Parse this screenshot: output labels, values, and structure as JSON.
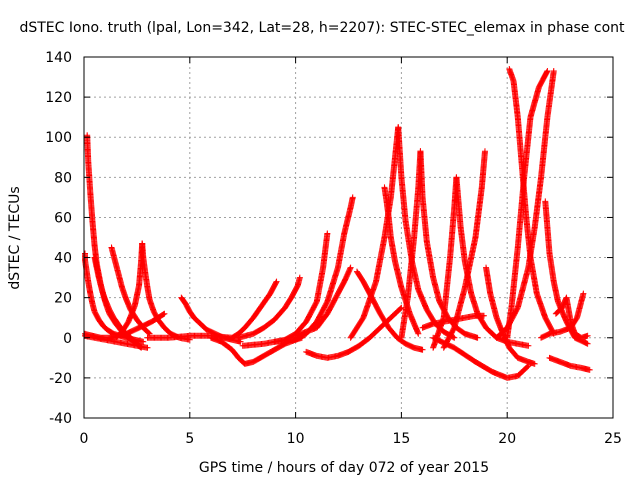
{
  "chart_data": {
    "type": "scatter",
    "title": "dSTEC Iono. truth (lpal, Lon=342, Lat=28, h=2207): STEC-STEC_elemax in phase cont",
    "xlabel": "GPS time / hours of day 072 of year 2015",
    "ylabel": "dSTEC  / TECUs",
    "xlim": [
      0,
      25
    ],
    "ylim": [
      -40,
      140
    ],
    "x_ticks": [
      "0",
      "5",
      "10",
      "15",
      "20",
      "25"
    ],
    "y_ticks": [
      "-40",
      "-20",
      "0",
      "20",
      "40",
      "60",
      "80",
      "100",
      "120",
      "140"
    ],
    "grid": true,
    "marker": "+",
    "colors": {
      "series": "#ff0000",
      "grid": "#a0a0a0",
      "axes": "#000000"
    },
    "series": [
      {
        "x": [
          0.0,
          0.1,
          0.2,
          0.3,
          0.4,
          0.5,
          0.7,
          0.9,
          1.1,
          1.4,
          1.7,
          2.0,
          2.4,
          2.8
        ],
        "y": [
          42,
          35,
          28,
          22,
          17,
          13,
          9,
          6,
          4,
          2,
          1,
          0,
          -1,
          -2
        ]
      },
      {
        "x": [
          0.15,
          0.2,
          0.3,
          0.4,
          0.5,
          0.6,
          0.8,
          1.0,
          1.2,
          1.5,
          1.8,
          2.1,
          2.5,
          2.7
        ],
        "y": [
          101,
          88,
          72,
          58,
          46,
          37,
          26,
          18,
          12,
          7,
          3,
          0,
          -3,
          -5
        ]
      },
      {
        "x": [
          0.5,
          0.6,
          0.7,
          0.8,
          0.9,
          1.0,
          1.2,
          1.4,
          1.6,
          1.8,
          2.0,
          2.3,
          2.6
        ],
        "y": [
          40,
          35,
          30,
          26,
          22,
          19,
          14,
          10,
          7,
          4,
          2,
          -1,
          -4
        ]
      },
      {
        "x": [
          0.0,
          0.5,
          1.0,
          1.5,
          2.0,
          2.5,
          3.0
        ],
        "y": [
          1,
          0,
          -1,
          -2,
          -3,
          -4,
          -5
        ]
      },
      {
        "x": [
          0.0,
          0.4,
          0.8,
          1.2,
          1.6,
          2.0,
          2.4,
          2.8,
          3.2,
          3.5,
          3.8
        ],
        "y": [
          2,
          1,
          0,
          0,
          1,
          2,
          4,
          6,
          8,
          10,
          12
        ]
      },
      {
        "x": [
          1.3,
          1.4,
          1.5,
          1.6,
          1.7,
          1.8,
          2.0,
          2.2,
          2.5,
          2.8,
          3.1
        ],
        "y": [
          45,
          41,
          37,
          33,
          29,
          25,
          19,
          14,
          9,
          5,
          2
        ]
      },
      {
        "x": [
          1.5,
          1.8,
          2.1,
          2.4,
          2.6,
          2.7,
          2.75
        ],
        "y": [
          0,
          3,
          8,
          16,
          26,
          38,
          47
        ]
      },
      {
        "x": [
          2.75,
          2.8,
          2.9,
          3.0,
          3.1,
          3.3,
          3.5,
          3.8,
          4.1,
          4.5,
          5.0
        ],
        "y": [
          47,
          40,
          32,
          25,
          19,
          13,
          9,
          5,
          2,
          0,
          -1
        ]
      },
      {
        "x": [
          4.6,
          4.8,
          5.0,
          5.2,
          5.5,
          5.8,
          6.2,
          6.6,
          7.0,
          7.4
        ],
        "y": [
          20,
          17,
          13,
          10,
          7,
          4,
          2,
          0,
          -1,
          -2
        ]
      },
      {
        "x": [
          3.0,
          4.0,
          5.0,
          6.0,
          7.0,
          7.3,
          7.6,
          8.0,
          8.4,
          8.8,
          9.1
        ],
        "y": [
          0,
          0,
          1,
          1,
          0,
          2,
          5,
          10,
          16,
          22,
          28
        ]
      },
      {
        "x": [
          6.0,
          6.5,
          7.0,
          7.3,
          7.6,
          8.0,
          8.5,
          9.0,
          9.5,
          10.0,
          10.3
        ],
        "y": [
          0,
          -2,
          -6,
          -10,
          -13,
          -12,
          -9,
          -6,
          -3,
          -1,
          0
        ]
      },
      {
        "x": [
          7.3,
          8.0,
          8.5,
          9.0,
          9.5,
          9.8,
          10.1,
          10.2
        ],
        "y": [
          0,
          2,
          5,
          9,
          15,
          20,
          26,
          30
        ]
      },
      {
        "x": [
          7.5,
          8.5,
          9.5,
          10.0,
          10.5,
          11.0,
          11.3,
          11.5
        ],
        "y": [
          -4,
          -3,
          -1,
          2,
          8,
          18,
          35,
          52
        ]
      },
      {
        "x": [
          9.0,
          10.0,
          10.5,
          11.0,
          11.5,
          12.0,
          12.3,
          12.6,
          12.7
        ],
        "y": [
          -2,
          -1,
          2,
          8,
          18,
          35,
          52,
          65,
          70
        ]
      },
      {
        "x": [
          10.0,
          11.0,
          11.5,
          12.0,
          12.3,
          12.6
        ],
        "y": [
          1,
          5,
          12,
          22,
          28,
          35
        ]
      },
      {
        "x": [
          10.5,
          11.0,
          11.5,
          12.0,
          12.5,
          13.0,
          13.5,
          14.0,
          14.5,
          15.0
        ],
        "y": [
          -7,
          -9,
          -10,
          -9,
          -7,
          -4,
          0,
          5,
          10,
          15
        ]
      },
      {
        "x": [
          12.9,
          13.2,
          13.6,
          14.0,
          14.4,
          14.8,
          15.2,
          15.6,
          16.0
        ],
        "y": [
          33,
          28,
          20,
          12,
          5,
          0,
          -3,
          -5,
          -6
        ]
      },
      {
        "x": [
          12.6,
          13.2,
          13.8,
          14.2,
          14.5,
          14.7,
          14.85
        ],
        "y": [
          0,
          10,
          28,
          50,
          70,
          90,
          105
        ]
      },
      {
        "x": [
          14.85,
          15.0,
          15.2,
          15.5,
          15.8,
          16.2,
          16.6,
          17.0,
          17.5
        ],
        "y": [
          105,
          80,
          58,
          38,
          24,
          14,
          7,
          3,
          0
        ]
      },
      {
        "x": [
          14.2,
          14.3,
          14.4,
          14.5,
          14.7,
          15.0,
          15.4,
          15.8
        ],
        "y": [
          75,
          68,
          60,
          50,
          38,
          25,
          12,
          2
        ]
      },
      {
        "x": [
          15.0,
          15.3,
          15.6,
          15.8,
          15.9
        ],
        "y": [
          0,
          20,
          50,
          75,
          93
        ]
      },
      {
        "x": [
          15.9,
          16.0,
          16.2,
          16.5,
          16.8,
          17.2,
          17.6,
          18.0,
          18.6
        ],
        "y": [
          93,
          70,
          48,
          30,
          18,
          10,
          5,
          2,
          0
        ]
      },
      {
        "x": [
          16.5,
          17.0,
          17.3,
          17.5,
          17.6
        ],
        "y": [
          -5,
          10,
          40,
          65,
          80
        ]
      },
      {
        "x": [
          17.6,
          17.8,
          18.0,
          18.3,
          18.6,
          19.0,
          19.5,
          20.0,
          20.5,
          21.0
        ],
        "y": [
          80,
          55,
          38,
          22,
          12,
          5,
          0,
          -2,
          -3,
          -4
        ]
      },
      {
        "x": [
          16.0,
          16.5,
          17.0,
          17.5,
          18.0,
          18.5,
          18.9
        ],
        "y": [
          5,
          7,
          8,
          9,
          10,
          11,
          11
        ]
      },
      {
        "x": [
          17.0,
          17.5,
          18.0,
          18.5,
          18.8,
          18.95
        ],
        "y": [
          -5,
          5,
          25,
          50,
          75,
          93
        ]
      },
      {
        "x": [
          19.0,
          19.2,
          19.5,
          19.8,
          20.1,
          20.5,
          21.0,
          21.3
        ],
        "y": [
          35,
          22,
          10,
          2,
          -5,
          -10,
          -12,
          -13
        ]
      },
      {
        "x": [
          16.5,
          17.5,
          18.5,
          19.3,
          20.0,
          20.5,
          21.0
        ],
        "y": [
          0,
          -5,
          -12,
          -17,
          -20,
          -19,
          -14
        ]
      },
      {
        "x": [
          20.0,
          20.2,
          20.5,
          20.8,
          21.1,
          21.5,
          21.9
        ],
        "y": [
          0,
          15,
          45,
          80,
          110,
          125,
          133
        ]
      },
      {
        "x": [
          20.1,
          20.3,
          20.5,
          20.7,
          20.9,
          21.1,
          21.4,
          21.8,
          22.2
        ],
        "y": [
          134,
          128,
          110,
          85,
          60,
          40,
          22,
          10,
          2
        ]
      },
      {
        "x": [
          19.5,
          20.0,
          20.5,
          21.0,
          21.3,
          21.6,
          21.9,
          22.2
        ],
        "y": [
          0,
          5,
          15,
          35,
          55,
          80,
          110,
          133
        ]
      },
      {
        "x": [
          21.8,
          21.9,
          22.0,
          22.2,
          22.4,
          22.8,
          23.2,
          23.8
        ],
        "y": [
          68,
          55,
          42,
          28,
          18,
          8,
          0,
          -3
        ]
      },
      {
        "x": [
          21.6,
          22.0,
          22.5,
          23.0,
          23.3,
          23.5,
          23.6
        ],
        "y": [
          0,
          2,
          3,
          5,
          10,
          18,
          22
        ]
      },
      {
        "x": [
          22.3,
          22.6,
          22.8,
          23.0,
          23.2,
          23.5,
          23.8
        ],
        "y": [
          12,
          15,
          20,
          8,
          2,
          0,
          1
        ]
      },
      {
        "x": [
          22.0,
          22.5,
          23.0,
          23.5,
          23.9
        ],
        "y": [
          -10,
          -12,
          -14,
          -15,
          -16
        ]
      }
    ]
  }
}
